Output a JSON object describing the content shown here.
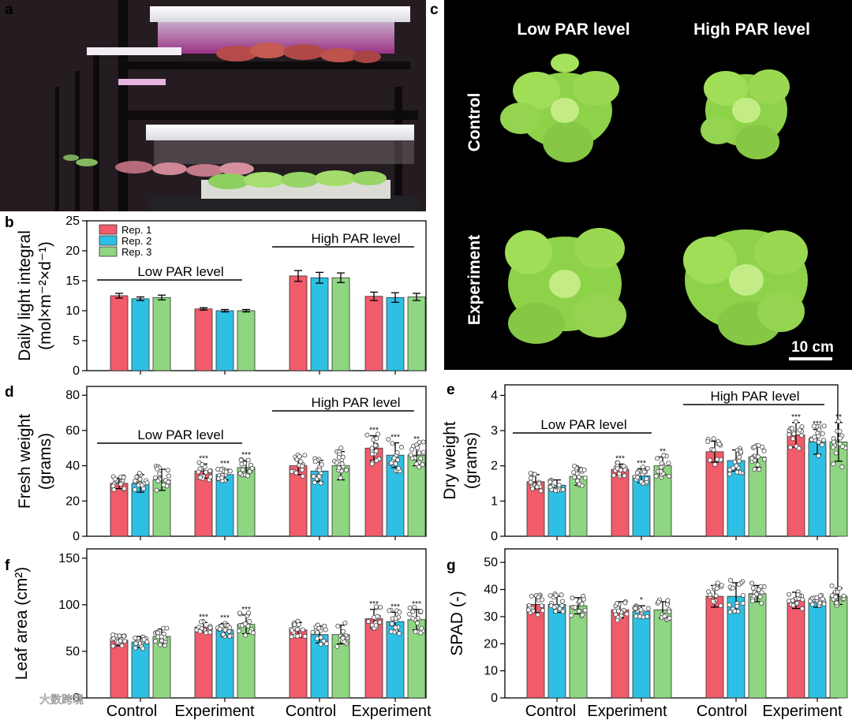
{
  "panels": {
    "a": "a",
    "b": "b",
    "c": "c",
    "d": "d",
    "e": "e",
    "f": "f",
    "g": "g"
  },
  "colors": {
    "rep1": "#f25b6a",
    "rep2": "#2ec0e4",
    "rep3": "#8fd682"
  },
  "photo_c": {
    "col1": "Low PAR level",
    "col2": "High PAR level",
    "row1": "Control",
    "row2": "Experiment",
    "scale": "10 cm"
  },
  "categories": [
    "Control",
    "Experiment",
    "Control",
    "Experiment"
  ],
  "watermark": "大数跨境",
  "chart_data": [
    {
      "panel": "b",
      "type": "bar",
      "ylabel_line1": "Daily light integral",
      "ylabel_line2": "(mol×m⁻²×d⁻¹)",
      "ylim": [
        0,
        25
      ],
      "yticks": [
        0,
        5,
        10,
        15,
        20,
        25
      ],
      "legend": [
        "Rep. 1",
        "Rep. 2",
        "Rep. 3"
      ],
      "group_labels": [
        "Low PAR level",
        "High PAR level"
      ],
      "series": [
        {
          "name": "Rep. 1",
          "values": [
            12.5,
            10.3,
            15.8,
            12.4
          ],
          "errors": [
            0.4,
            0.2,
            0.9,
            0.7
          ]
        },
        {
          "name": "Rep. 2",
          "values": [
            12.0,
            10.0,
            15.5,
            12.2
          ],
          "errors": [
            0.3,
            0.2,
            0.9,
            0.8
          ]
        },
        {
          "name": "Rep. 3",
          "values": [
            12.2,
            10.0,
            15.5,
            12.3
          ],
          "errors": [
            0.4,
            0.2,
            0.8,
            0.6
          ]
        }
      ]
    },
    {
      "panel": "d",
      "type": "bar",
      "ylabel_line1": "Fresh weight",
      "ylabel_line2": "(grams)",
      "ylim": [
        0,
        85
      ],
      "yticks": [
        0,
        20,
        40,
        60,
        80
      ],
      "group_labels": [
        "Low PAR level",
        "High PAR level"
      ],
      "series": [
        {
          "name": "Rep. 1",
          "values": [
            30,
            37,
            40,
            50
          ],
          "errors": [
            3,
            4,
            5,
            7
          ],
          "sig": [
            "",
            "***",
            "",
            "***"
          ]
        },
        {
          "name": "Rep. 2",
          "values": [
            30,
            35,
            37,
            46
          ],
          "errors": [
            5,
            3,
            6,
            7
          ],
          "sig": [
            "",
            "***",
            "",
            "***"
          ]
        },
        {
          "name": "Rep. 3",
          "values": [
            32,
            39,
            40,
            46
          ],
          "errors": [
            6,
            4,
            8,
            6
          ],
          "sig": [
            "",
            "***",
            "",
            "**"
          ]
        }
      ]
    },
    {
      "panel": "e",
      "type": "bar",
      "ylabel_line1": "Dry weight",
      "ylabel_line2": "(grams)",
      "ylim": [
        0,
        4.3
      ],
      "yticks": [
        0,
        1,
        2,
        3,
        4
      ],
      "group_labels": [
        "Low PAR level",
        "High PAR level"
      ],
      "series": [
        {
          "name": "Rep. 1",
          "values": [
            1.55,
            1.9,
            2.4,
            2.88
          ],
          "errors": [
            0.2,
            0.15,
            0.3,
            0.35
          ],
          "sig": [
            "",
            "***",
            "",
            "***"
          ]
        },
        {
          "name": "Rep. 2",
          "values": [
            1.45,
            1.72,
            2.15,
            2.68
          ],
          "errors": [
            0.15,
            0.2,
            0.3,
            0.35
          ],
          "sig": [
            "",
            "***",
            "",
            "***"
          ]
        },
        {
          "name": "Rep. 3",
          "values": [
            1.7,
            2.0,
            2.25,
            2.68
          ],
          "errors": [
            0.25,
            0.25,
            0.3,
            0.55
          ],
          "sig": [
            "",
            "**",
            "",
            "**"
          ]
        }
      ]
    },
    {
      "panel": "f",
      "type": "bar",
      "ylabel_line1": "Leaf area (cm²)",
      "ylim": [
        0,
        160
      ],
      "yticks": [
        0,
        50,
        100,
        150
      ],
      "series": [
        {
          "name": "Rep. 1",
          "values": [
            62,
            76,
            73,
            85
          ],
          "errors": [
            6,
            5,
            8,
            10
          ],
          "sig": [
            "",
            "***",
            "",
            "***"
          ]
        },
        {
          "name": "Rep. 2",
          "values": [
            60,
            73,
            68,
            82
          ],
          "errors": [
            6,
            7,
            9,
            10
          ],
          "sig": [
            "",
            "***",
            "",
            "***"
          ]
        },
        {
          "name": "Rep. 3",
          "values": [
            66,
            79,
            68,
            84
          ],
          "errors": [
            8,
            10,
            10,
            11
          ],
          "sig": [
            "",
            "***",
            "",
            "***"
          ]
        }
      ]
    },
    {
      "panel": "g",
      "type": "bar",
      "ylabel_line1": "SPAD (-)",
      "ylim": [
        0,
        55
      ],
      "yticks": [
        0,
        10,
        20,
        30,
        40,
        50
      ],
      "series": [
        {
          "name": "Rep. 1",
          "values": [
            34.5,
            32.5,
            37.5,
            36.0
          ],
          "errors": [
            3,
            3,
            4,
            3
          ],
          "sig": [
            "",
            "",
            "",
            ""
          ]
        },
        {
          "name": "Rep. 2",
          "values": [
            34.5,
            32.0,
            37.5,
            35.5
          ],
          "errors": [
            3,
            2,
            5,
            2
          ],
          "sig": [
            "",
            "*",
            "",
            ""
          ]
        },
        {
          "name": "Rep. 3",
          "values": [
            34.0,
            32.5,
            38.5,
            37.5
          ],
          "errors": [
            3,
            3,
            3,
            3
          ],
          "sig": [
            "",
            "",
            "",
            ""
          ]
        }
      ]
    }
  ]
}
